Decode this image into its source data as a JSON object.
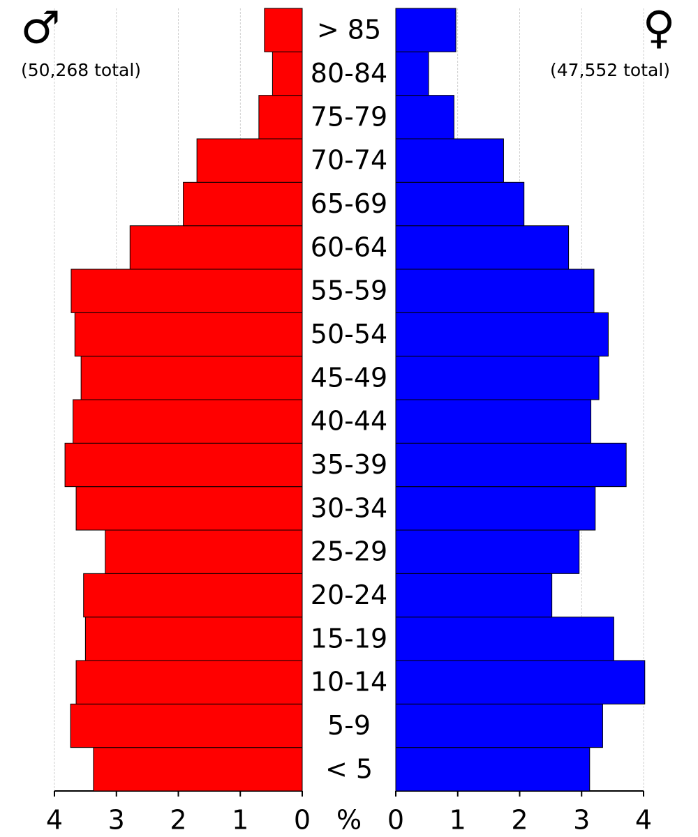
{
  "chart_data": {
    "type": "pyramid",
    "categories": [
      "< 5",
      "5-9",
      "10-14",
      "15-19",
      "20-24",
      "25-29",
      "30-34",
      "35-39",
      "40-44",
      "45-49",
      "50-54",
      "55-59",
      "60-64",
      "65-69",
      "70-74",
      "75-79",
      "80-84",
      "> 85"
    ],
    "series": [
      {
        "name": "♂",
        "total_label": "(50,268 total)",
        "color": "#ff0000",
        "values": [
          3.37,
          3.74,
          3.65,
          3.5,
          3.53,
          3.18,
          3.65,
          3.83,
          3.7,
          3.57,
          3.67,
          3.73,
          2.78,
          1.92,
          1.7,
          0.7,
          0.48,
          0.61
        ]
      },
      {
        "name": "♀",
        "total_label": "(47,552 total)",
        "color": "#0000ff",
        "values": [
          3.13,
          3.34,
          4.02,
          3.52,
          2.52,
          2.96,
          3.22,
          3.72,
          3.15,
          3.28,
          3.43,
          3.2,
          2.79,
          2.07,
          1.74,
          0.94,
          0.53,
          0.97
        ]
      }
    ],
    "xlabel": "%",
    "xlim": [
      0,
      4
    ],
    "xticks": [
      0,
      1,
      2,
      3,
      4
    ],
    "grid": true
  }
}
